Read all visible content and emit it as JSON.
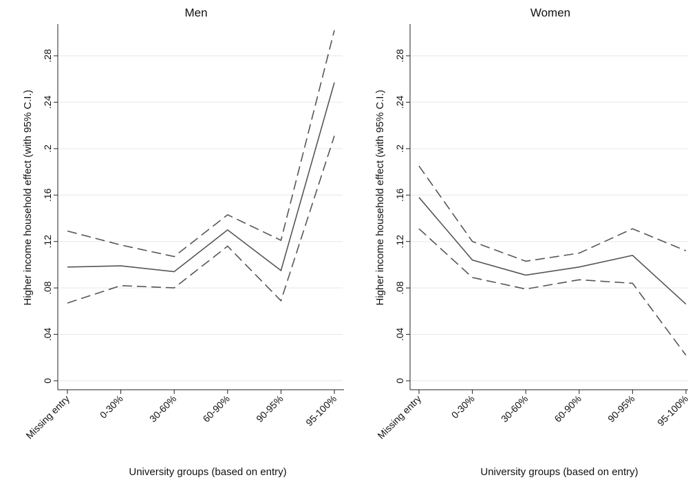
{
  "chart_data": [
    {
      "type": "line",
      "title": "Men",
      "xlabel": "University groups (based on entry)",
      "ylabel": "Higher income household effect (with 95% C.I.)",
      "categories": [
        "Missing entry",
        "0-30%",
        "30-60%",
        "60-90%",
        "90-95%",
        "95-100%"
      ],
      "yticks": [
        "0",
        ".04",
        ".08",
        ".12",
        ".16",
        ".2",
        ".24",
        ".28"
      ],
      "ylim": [
        0,
        0.28
      ],
      "grid": true,
      "series": [
        {
          "role": "estimate",
          "style": "solid",
          "values": [
            0.098,
            0.099,
            0.094,
            0.13,
            0.095,
            0.257
          ]
        },
        {
          "role": "upper",
          "style": "dashed",
          "values": [
            0.129,
            0.117,
            0.107,
            0.143,
            0.121,
            0.302
          ]
        },
        {
          "role": "lower",
          "style": "dashed",
          "values": [
            0.067,
            0.082,
            0.08,
            0.116,
            0.069,
            0.211
          ]
        }
      ],
      "line_color": "#555555"
    },
    {
      "type": "line",
      "title": "Women",
      "xlabel": "University groups (based on entry)",
      "ylabel": "Higher income household effect (with 95% C.I.)",
      "categories": [
        "Missing entry",
        "0-30%",
        "30-60%",
        "60-90%",
        "90-95%",
        "95-100%"
      ],
      "yticks": [
        "0",
        ".04",
        ".08",
        ".12",
        ".16",
        ".2",
        ".24",
        ".28"
      ],
      "ylim": [
        0,
        0.28
      ],
      "grid": true,
      "series": [
        {
          "role": "estimate",
          "style": "solid",
          "values": [
            0.158,
            0.104,
            0.091,
            0.098,
            0.108,
            0.066
          ]
        },
        {
          "role": "upper",
          "style": "dashed",
          "values": [
            0.185,
            0.12,
            0.103,
            0.11,
            0.131,
            0.112
          ]
        },
        {
          "role": "lower",
          "style": "dashed",
          "values": [
            0.131,
            0.089,
            0.079,
            0.087,
            0.084,
            0.022
          ]
        }
      ],
      "line_color": "#555555"
    }
  ]
}
